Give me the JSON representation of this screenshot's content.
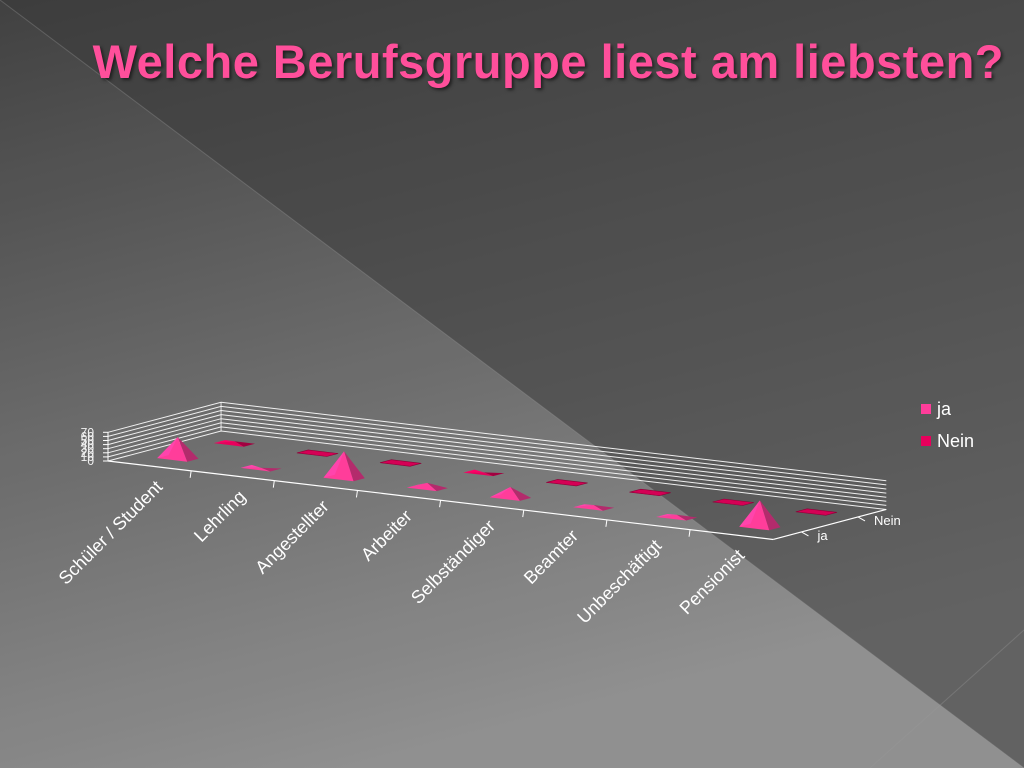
{
  "slide": {
    "title": "Welche Berufsgruppe liest am liebsten?"
  },
  "colors": {
    "ja": "#ff3d9a",
    "nein": "#e8005c",
    "title": "#ff4f9b",
    "gridline": "#ffffff",
    "background_dark": "#3e3e3e",
    "background_light": "#8a8a8a"
  },
  "chart_data": {
    "type": "bar",
    "bar_shape": "pyramid",
    "three_d": true,
    "categories": [
      "Schüler / Student",
      "Lehrling",
      "Angestellter",
      "Arbeiter",
      "Selbständiger",
      "Beamter",
      "Unbeschäftigt",
      "Pensionist"
    ],
    "series": [
      {
        "name": "ja",
        "values": [
          52,
          1,
          65,
          12,
          26,
          6,
          6,
          65
        ]
      },
      {
        "name": "Nein",
        "values": [
          5,
          0,
          0,
          1,
          0,
          0,
          0,
          0
        ]
      }
    ],
    "yticks": [
      "0",
      "10",
      "20",
      "30",
      "40",
      "50",
      "60",
      "70"
    ],
    "ylim": [
      0,
      70
    ],
    "depth_labels": [
      "ja",
      "Nein"
    ],
    "legend": {
      "position": "right",
      "entries": [
        "ja",
        "Nein"
      ]
    },
    "grid": true
  }
}
